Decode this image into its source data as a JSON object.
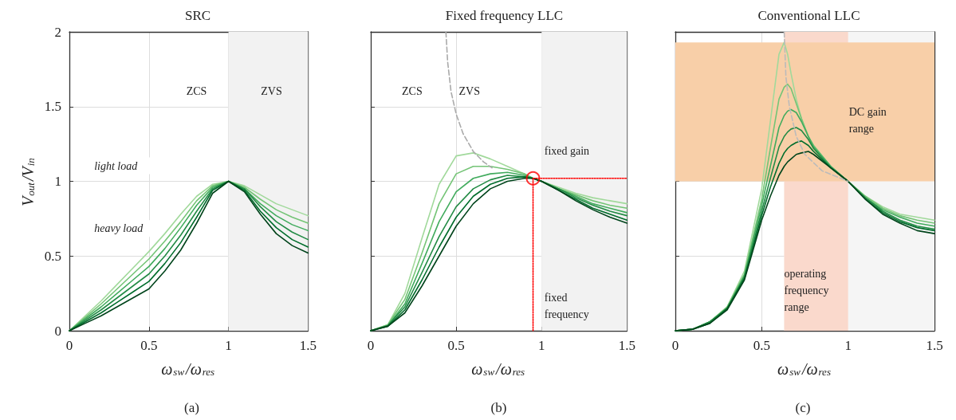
{
  "chart_data": [
    {
      "type": "line",
      "title": "SRC",
      "xlabel": "ω$_{sw}$/ω$_{res}$",
      "ylabel": "V$_{out}$/V$_{in}$",
      "xlim": [
        0,
        1.5
      ],
      "ylim": [
        0,
        2
      ],
      "xticks": [
        0,
        0.5,
        1,
        1.5
      ],
      "yticks": [
        0,
        0.5,
        1,
        1.5,
        2
      ],
      "grid": true,
      "marker": "none",
      "line_style": "solid",
      "x": [
        0,
        0.1,
        0.2,
        0.3,
        0.4,
        0.5,
        0.6,
        0.7,
        0.8,
        0.9,
        1,
        1.1,
        1.2,
        1.3,
        1.4,
        1.5
      ],
      "series": [
        {
          "color": "#a1d99b",
          "values": [
            0,
            0.1,
            0.2,
            0.31,
            0.42,
            0.53,
            0.65,
            0.78,
            0.9,
            0.98,
            1,
            0.97,
            0.91,
            0.85,
            0.81,
            0.77
          ]
        },
        {
          "color": "#74c476",
          "values": [
            0,
            0.09,
            0.18,
            0.28,
            0.38,
            0.48,
            0.6,
            0.73,
            0.87,
            0.97,
            1,
            0.96,
            0.88,
            0.81,
            0.76,
            0.72
          ]
        },
        {
          "color": "#41ab5d",
          "values": [
            0,
            0.08,
            0.16,
            0.25,
            0.34,
            0.43,
            0.55,
            0.69,
            0.84,
            0.96,
            1,
            0.95,
            0.85,
            0.77,
            0.71,
            0.67
          ]
        },
        {
          "color": "#238b45",
          "values": [
            0,
            0.07,
            0.14,
            0.22,
            0.3,
            0.38,
            0.5,
            0.64,
            0.8,
            0.95,
            1,
            0.95,
            0.83,
            0.73,
            0.66,
            0.61
          ]
        },
        {
          "color": "#006d2c",
          "values": [
            0,
            0.06,
            0.12,
            0.19,
            0.26,
            0.33,
            0.45,
            0.59,
            0.76,
            0.94,
            1,
            0.94,
            0.8,
            0.69,
            0.61,
            0.56
          ]
        },
        {
          "color": "#00441b",
          "values": [
            0,
            0.05,
            0.1,
            0.16,
            0.22,
            0.28,
            0.4,
            0.54,
            0.72,
            0.92,
            1,
            0.93,
            0.78,
            0.65,
            0.57,
            0.52
          ]
        }
      ],
      "bands": [
        {
          "axis": "x",
          "from": 1,
          "to": 1.5,
          "color": "#f2f2f2"
        }
      ],
      "annotations": [
        "ZCS",
        "ZVS",
        "light load",
        "heavy load",
        "(a)"
      ]
    },
    {
      "type": "line",
      "title": "Fixed frequency LLC",
      "xlabel": "ω$_{sw}$/ω$_{res}$",
      "xlim": [
        0,
        1.5
      ],
      "ylim": [
        0,
        2
      ],
      "xticks": [
        0,
        0.5,
        1,
        1.5
      ],
      "yticks": [
        0,
        0.5,
        1,
        1.5,
        2
      ],
      "tick_labels": "x",
      "grid": true,
      "marker": "none",
      "line_style": "solid",
      "x": [
        0,
        0.1,
        0.2,
        0.3,
        0.4,
        0.5,
        0.6,
        0.7,
        0.8,
        0.9,
        0.95,
        1,
        1.1,
        1.2,
        1.3,
        1.4,
        1.5
      ],
      "series": [
        {
          "color": "#a1d99b",
          "values": [
            0,
            0.04,
            0.25,
            0.62,
            0.98,
            1.17,
            1.19,
            1.15,
            1.1,
            1.05,
            1.02,
            1,
            0.96,
            0.92,
            0.89,
            0.87,
            0.85
          ]
        },
        {
          "color": "#74c476",
          "values": [
            0,
            0.04,
            0.21,
            0.52,
            0.85,
            1.05,
            1.1,
            1.1,
            1.08,
            1.05,
            1.02,
            1,
            0.95,
            0.91,
            0.87,
            0.84,
            0.82
          ]
        },
        {
          "color": "#41ab5d",
          "values": [
            0,
            0.035,
            0.18,
            0.45,
            0.73,
            0.93,
            1.02,
            1.05,
            1.06,
            1.04,
            1.02,
            1,
            0.95,
            0.9,
            0.85,
            0.82,
            0.79
          ]
        },
        {
          "color": "#238b45",
          "values": [
            0,
            0.035,
            0.16,
            0.39,
            0.63,
            0.83,
            0.95,
            1.01,
            1.04,
            1.03,
            1.02,
            1,
            0.95,
            0.89,
            0.84,
            0.8,
            0.77
          ]
        },
        {
          "color": "#006d2c",
          "values": [
            0,
            0.03,
            0.14,
            0.34,
            0.56,
            0.76,
            0.9,
            0.98,
            1.02,
            1.03,
            1.02,
            1,
            0.94,
            0.88,
            0.82,
            0.78,
            0.74
          ]
        },
        {
          "color": "#00441b",
          "values": [
            0,
            0.03,
            0.12,
            0.3,
            0.5,
            0.7,
            0.85,
            0.95,
            1.0,
            1.02,
            1.02,
            1,
            0.94,
            0.87,
            0.81,
            0.76,
            0.72
          ]
        },
        {
          "type": "line",
          "x": [
            0.44,
            0.45,
            0.47,
            0.5,
            0.54,
            0.6,
            0.66,
            0.71
          ],
          "values": [
            2,
            1.8,
            1.6,
            1.45,
            1.32,
            1.2,
            1.13,
            1.09
          ],
          "color": "#aaaaaa",
          "line_style": "dashed"
        },
        {
          "type": "line",
          "x": [
            0.95,
            1.5
          ],
          "values": [
            1.02,
            1.02
          ],
          "color": "#ff0000",
          "line_style": "dotted"
        },
        {
          "type": "line",
          "x": [
            0.95,
            0.95
          ],
          "values": [
            0,
            1.02
          ],
          "color": "#ff0000",
          "line_style": "dotted"
        },
        {
          "type": "scatter",
          "x": [
            0.95
          ],
          "values": [
            1.02
          ],
          "color": "#ff0000",
          "marker": "circle"
        }
      ],
      "bands": [
        {
          "axis": "x",
          "from": 1,
          "to": 1.5,
          "color": "#f2f2f2"
        }
      ],
      "annotations": [
        "ZCS",
        "ZVS",
        "fixed gain",
        "fixed frequency",
        "(b)"
      ]
    },
    {
      "type": "line",
      "title": "Conventional LLC",
      "xlabel": "ω$_{sw}$/ω$_{res}$",
      "xlim": [
        0,
        1.5
      ],
      "ylim": [
        0,
        2
      ],
      "xticks": [
        0,
        0.5,
        1,
        1.5
      ],
      "yticks": [
        0,
        0.5,
        1,
        1.5,
        2
      ],
      "tick_labels": "x",
      "grid": true,
      "marker": "none",
      "line_style": "solid",
      "x": [
        0,
        0.1,
        0.2,
        0.3,
        0.4,
        0.5,
        0.55,
        0.6,
        0.63,
        0.65,
        0.67,
        0.7,
        0.73,
        0.77,
        0.8,
        0.9,
        1,
        1.1,
        1.2,
        1.3,
        1.4,
        1.5
      ],
      "series": [
        {
          "color": "#a1d99b",
          "values": [
            0,
            0.01,
            0.06,
            0.16,
            0.4,
            0.95,
            1.4,
            1.85,
            1.93,
            1.85,
            1.72,
            1.55,
            1.42,
            1.3,
            1.24,
            1.1,
            1,
            0.9,
            0.83,
            0.78,
            0.76,
            0.74
          ]
        },
        {
          "color": "#74c476",
          "values": [
            0,
            0.01,
            0.06,
            0.16,
            0.38,
            0.88,
            1.22,
            1.55,
            1.63,
            1.65,
            1.62,
            1.52,
            1.42,
            1.3,
            1.24,
            1.1,
            1,
            0.9,
            0.82,
            0.77,
            0.74,
            0.72
          ]
        },
        {
          "color": "#41ab5d",
          "values": [
            0,
            0.01,
            0.06,
            0.15,
            0.37,
            0.84,
            1.1,
            1.36,
            1.44,
            1.47,
            1.48,
            1.46,
            1.4,
            1.3,
            1.23,
            1.1,
            1,
            0.89,
            0.81,
            0.76,
            0.72,
            0.7
          ]
        },
        {
          "color": "#238b45",
          "values": [
            0,
            0.01,
            0.06,
            0.15,
            0.36,
            0.8,
            1.02,
            1.23,
            1.3,
            1.33,
            1.35,
            1.36,
            1.34,
            1.28,
            1.22,
            1.09,
            1,
            0.89,
            0.8,
            0.74,
            0.7,
            0.68
          ]
        },
        {
          "color": "#006d2c",
          "values": [
            0,
            0.01,
            0.05,
            0.15,
            0.35,
            0.77,
            0.96,
            1.12,
            1.19,
            1.22,
            1.24,
            1.26,
            1.27,
            1.24,
            1.2,
            1.09,
            1,
            0.88,
            0.79,
            0.73,
            0.69,
            0.67
          ]
        },
        {
          "color": "#00441b",
          "values": [
            0,
            0.01,
            0.05,
            0.14,
            0.34,
            0.74,
            0.9,
            1.04,
            1.1,
            1.13,
            1.15,
            1.18,
            1.19,
            1.2,
            1.18,
            1.09,
            1,
            0.88,
            0.78,
            0.72,
            0.67,
            0.65
          ]
        },
        {
          "type": "line",
          "x": [
            0.63,
            0.64,
            0.66,
            0.7,
            0.75,
            0.85,
            1
          ],
          "values": [
            2,
            1.7,
            1.5,
            1.3,
            1.18,
            1.07,
            1
          ],
          "color": "#bbbbbb",
          "line_style": "dashed"
        }
      ],
      "bands": [
        {
          "axis": "x",
          "from": 0.63,
          "to": 1.5,
          "color": "#f5f5f5"
        },
        {
          "axis": "x",
          "from": 0.63,
          "to": 1,
          "color": "#fad9cc"
        },
        {
          "axis": "y",
          "from": 1,
          "to": 1.93,
          "color": "#f8cfa8"
        }
      ],
      "annotations": [
        "DC gain range",
        "operating frequency range",
        "(c)"
      ]
    }
  ]
}
